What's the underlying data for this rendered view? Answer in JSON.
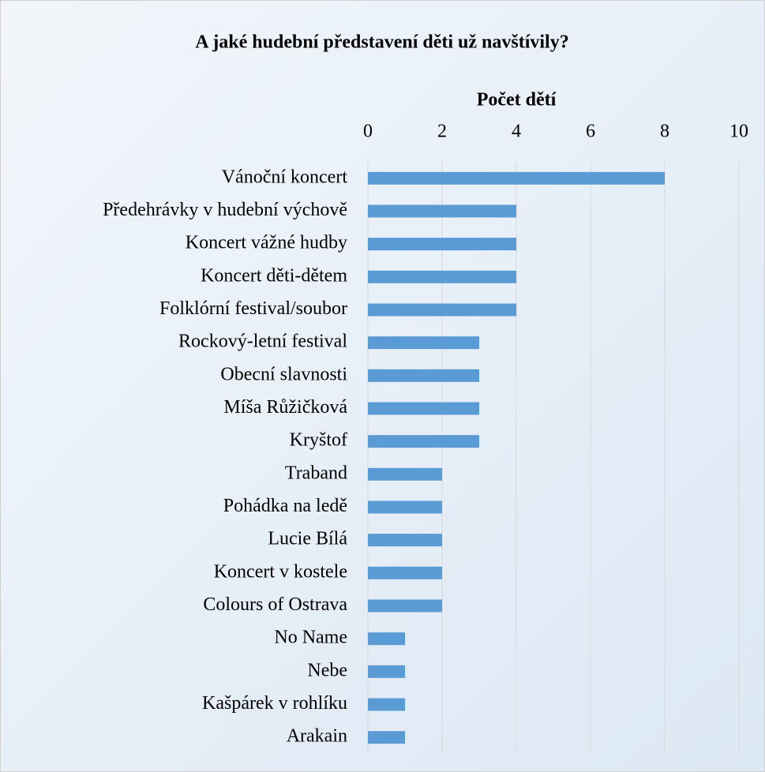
{
  "chart_data": {
    "type": "bar",
    "orientation": "horizontal",
    "title": "A jaké hudební představení děti už navštívily?",
    "x_label": "Počet dětí",
    "categories": [
      "Vánoční koncert",
      "Předehrávky v hudební výchově",
      "Koncert vážné hudby",
      "Koncert děti-dětem",
      "Folklórní festival/soubor",
      "Rockový-letní festival",
      "Obecní slavnosti",
      "Míša Růžičková",
      "Kryštof",
      "Traband",
      "Pohádka na ledě",
      "Lucie Bílá",
      "Koncert v kostele",
      "Colours of Ostrava",
      "No Name",
      "Nebe",
      "Kašpárek v rohlíku",
      "Arakain"
    ],
    "values": [
      8,
      4,
      4,
      4,
      4,
      3,
      3,
      3,
      3,
      2,
      2,
      2,
      2,
      2,
      1,
      1,
      1,
      1
    ],
    "color": "#5b9bd5",
    "xlim": [
      0,
      10
    ],
    "xticks": [
      0,
      2,
      4,
      6,
      8,
      10
    ],
    "grid": true
  }
}
